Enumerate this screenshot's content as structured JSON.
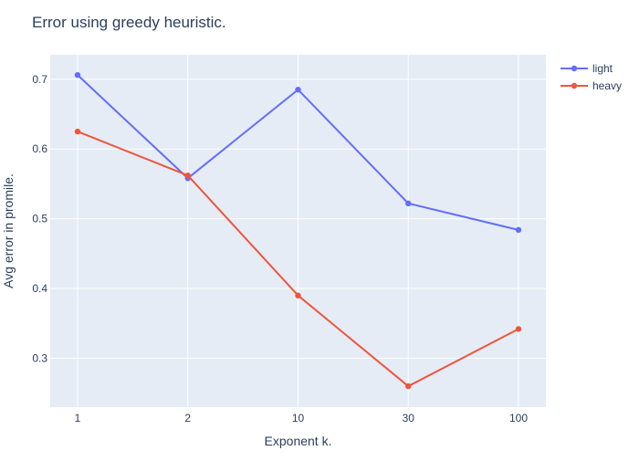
{
  "chart_data": {
    "type": "line",
    "title": "Error using greedy heuristic.",
    "xlabel": "Exponent k.",
    "ylabel": "Avg error in promile.",
    "categories": [
      "1",
      "2",
      "10",
      "30",
      "100"
    ],
    "yticks": [
      0.3,
      0.4,
      0.5,
      0.6,
      0.7
    ],
    "ylim": [
      0.23,
      0.735
    ],
    "grid": true,
    "legend_position": "top-right",
    "series": [
      {
        "name": "light",
        "color": "#636efa",
        "values": [
          0.706,
          0.558,
          0.685,
          0.522,
          0.484
        ]
      },
      {
        "name": "heavy",
        "color": "#ef553b",
        "values": [
          0.625,
          0.562,
          0.39,
          0.26,
          0.342
        ]
      }
    ]
  },
  "colors": {
    "plot_background": "#e5ecf6",
    "grid": "#ffffff",
    "text": "#2a3f5f"
  }
}
